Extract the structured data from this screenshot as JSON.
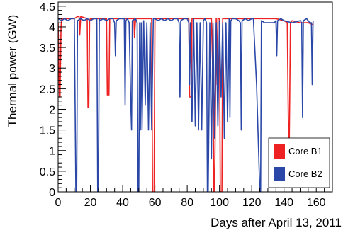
{
  "chart_data": {
    "type": "line",
    "xlabel": "Days after April 13, 2011",
    "ylabel": "Thermal power (GW)",
    "xlim": [
      0,
      170
    ],
    "ylim": [
      0,
      4.6
    ],
    "x_ticks": [
      0,
      20,
      40,
      60,
      80,
      100,
      120,
      140,
      160
    ],
    "y_ticks": [
      0,
      0.5,
      1,
      1.5,
      2,
      2.5,
      3,
      3.5,
      4,
      4.5
    ],
    "x_tick_labels": [
      "0",
      "20",
      "40",
      "60",
      "80",
      "100",
      "120",
      "140",
      "160"
    ],
    "y_tick_labels": [
      "0",
      "0.5",
      "1",
      "1.5",
      "2",
      "2.5",
      "3",
      "3.5",
      "4",
      "4.5"
    ],
    "legend_position": "bottom-right",
    "series": [
      {
        "name": "Core B1",
        "color": "#ee2222",
        "x": [
          0,
          0.8,
          1.2,
          1.8,
          2.2,
          10,
          12,
          13,
          13.4,
          14,
          18,
          18.5,
          19,
          19.5,
          20,
          30,
          30.5,
          31.5,
          32,
          45,
          47,
          47.3,
          48,
          50,
          52,
          55,
          58,
          58.5,
          59.5,
          60,
          62,
          70,
          75,
          81,
          81.5,
          82.5,
          83,
          85,
          90,
          95,
          96,
          96.5,
          97,
          98,
          98.5,
          99,
          100,
          100.5,
          101,
          101.5,
          102,
          105,
          110,
          115,
          120,
          125,
          130,
          135,
          140,
          142,
          142.8,
          143.3,
          144,
          145,
          150,
          155,
          158
        ],
        "y": [
          4.1,
          2.3,
          2.3,
          4.0,
          4.2,
          4.2,
          4.25,
          4.25,
          3.8,
          4.25,
          4.2,
          2.05,
          2.05,
          4.15,
          4.2,
          4.2,
          2.35,
          2.35,
          4.2,
          4.2,
          4.2,
          3.75,
          4.2,
          4.2,
          4.2,
          4.2,
          4.2,
          0,
          0,
          4.2,
          4.2,
          4.2,
          4.2,
          4.2,
          2.3,
          2.3,
          4.2,
          4.2,
          4.2,
          4.2,
          2.7,
          0,
          0,
          4.2,
          2.6,
          4.2,
          4.2,
          0,
          0,
          0,
          4.2,
          4.2,
          4.2,
          4.2,
          4.2,
          4.2,
          4.2,
          4.2,
          4.15,
          4.1,
          1.25,
          1.25,
          4.1,
          4.15,
          4.1,
          4.1,
          4.05
        ]
      },
      {
        "name": "Core B2",
        "color": "#2b48a8",
        "x": [
          0,
          2,
          4,
          6,
          8,
          10,
          10.5,
          11,
          11.5,
          12,
          14,
          16,
          18,
          20,
          22,
          24,
          24.5,
          25,
          25.5,
          26,
          28,
          30,
          32,
          34,
          35,
          35.5,
          36,
          38,
          40,
          41,
          41.5,
          42,
          43,
          44,
          45,
          45.5,
          46,
          48,
          49,
          49.5,
          50,
          50.5,
          51,
          51.5,
          52,
          53,
          54,
          55,
          56,
          57,
          58,
          59,
          60,
          62,
          64,
          66,
          68,
          70,
          72,
          74,
          75,
          75.5,
          76,
          78,
          80,
          81,
          81.5,
          82,
          83,
          84,
          85,
          86,
          87,
          88,
          89,
          90,
          91,
          92,
          92.5,
          93,
          93.5,
          94,
          95,
          96,
          97,
          98,
          99,
          100,
          101,
          102,
          103,
          104,
          105,
          106,
          106.5,
          107,
          108,
          110,
          112,
          113,
          113.5,
          114,
          116,
          118,
          120,
          121,
          123,
          125,
          125.5,
          126,
          128,
          130,
          132,
          134,
          135,
          135.5,
          136,
          138,
          140,
          145,
          150,
          151,
          151.5,
          152,
          154,
          156,
          157,
          157.5,
          158
        ],
        "y": [
          4.2,
          4.15,
          4.2,
          4.15,
          4.2,
          4.2,
          2.2,
          0,
          0,
          4.15,
          4.2,
          4.15,
          4.2,
          4.15,
          4.2,
          4.2,
          0,
          0,
          4.2,
          4.15,
          4.2,
          4.15,
          4.2,
          4.2,
          4.1,
          3.3,
          4.15,
          4.2,
          4.2,
          4.2,
          2.1,
          4.15,
          4.2,
          4.1,
          2.2,
          1.5,
          4.15,
          4.2,
          4.1,
          0,
          0,
          4.1,
          1.5,
          4.1,
          1.5,
          4.15,
          2.1,
          4.1,
          1.5,
          4.1,
          1.5,
          4.2,
          4.2,
          4.15,
          4.2,
          4.15,
          4.2,
          4.15,
          4.2,
          4.2,
          4.1,
          2.3,
          4.15,
          4.2,
          4.2,
          4.1,
          2.6,
          4.1,
          1.7,
          4.2,
          1.6,
          4.1,
          1.5,
          4.1,
          1.5,
          4.15,
          4.2,
          4.1,
          0,
          0,
          2.0,
          4.1,
          0.8,
          4.1,
          1.3,
          4.1,
          1.6,
          4.15,
          2.3,
          4.1,
          1.3,
          4.1,
          1.7,
          4.2,
          1.8,
          4.15,
          4.2,
          4.2,
          4.15,
          4.1,
          1.5,
          4.15,
          4.2,
          4.15,
          4.2,
          4.2,
          2.6,
          0,
          0,
          4.15,
          4.1,
          4.1,
          4.1,
          4.1,
          4.15,
          3.3,
          4.15,
          4.2,
          4.15,
          4.1,
          4.15,
          4.1,
          1.8,
          4.15,
          4.2,
          4.1,
          4.1,
          2.6,
          4.15
        ]
      }
    ]
  }
}
